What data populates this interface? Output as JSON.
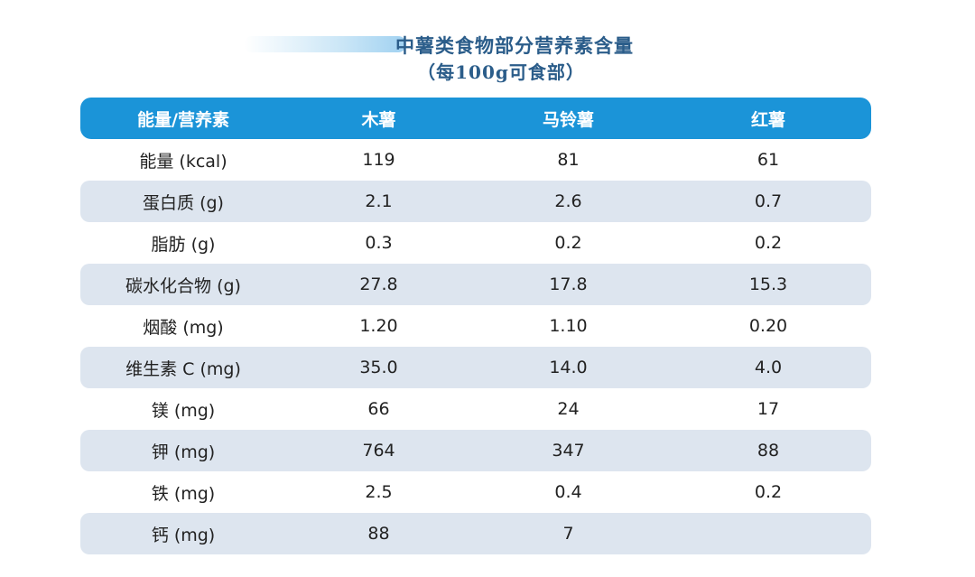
{
  "title": {
    "main": "中薯类食物部分营养素含量",
    "sub": "（每100g可食部）"
  },
  "colors": {
    "header_bg": "#1b94d8",
    "alt_row_bg": "#dde5ef",
    "title_color": "#2b5d8a"
  },
  "table": {
    "headers": [
      "能量/营养素",
      "木薯",
      "马铃薯",
      "红薯"
    ],
    "rows": [
      [
        "能量 (kcal)",
        "119",
        "81",
        "61"
      ],
      [
        "蛋白质 (g)",
        "2.1",
        "2.6",
        "0.7"
      ],
      [
        "脂肪 (g)",
        "0.3",
        "0.2",
        "0.2"
      ],
      [
        "碳水化合物 (g)",
        "27.8",
        "17.8",
        "15.3"
      ],
      [
        "烟酸 (mg)",
        "1.20",
        "1.10",
        "0.20"
      ],
      [
        "维生素 C (mg)",
        "35.0",
        "14.0",
        "4.0"
      ],
      [
        "镁 (mg)",
        "66",
        "24",
        "17"
      ],
      [
        "钾 (mg)",
        "764",
        "347",
        "88"
      ],
      [
        "铁 (mg)",
        "2.5",
        "0.4",
        "0.2"
      ],
      [
        "钙 (mg)",
        "88",
        "7",
        ""
      ]
    ]
  }
}
